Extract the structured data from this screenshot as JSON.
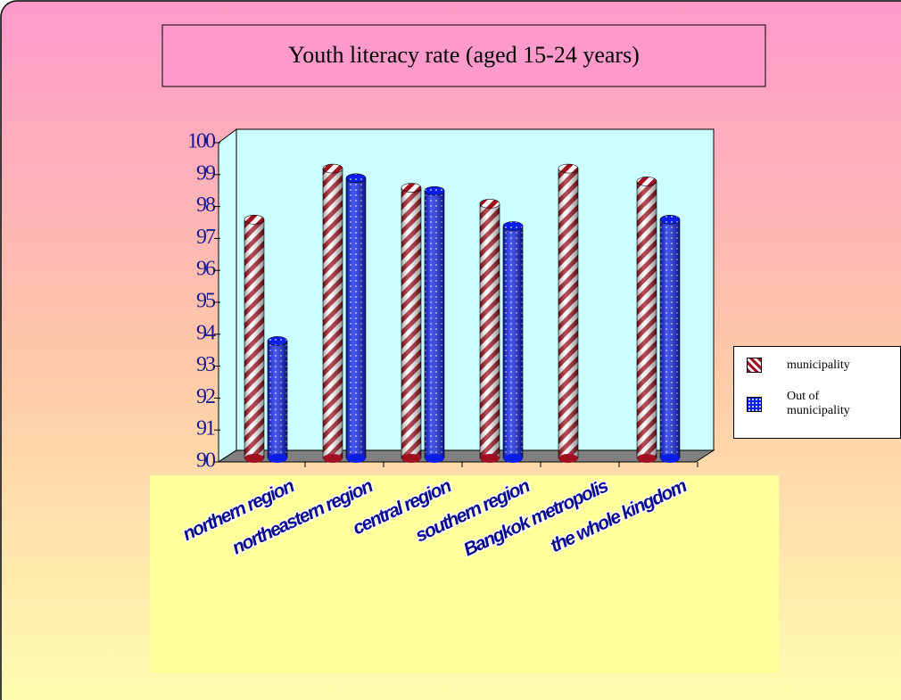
{
  "chart_data": {
    "type": "bar3d",
    "title": "Youth literacy rate (aged 15-24 years)",
    "categories": [
      "northern region",
      "northeastern region",
      "central  region",
      "southern  region",
      "Bangkok metropolis",
      "the whole kingdom"
    ],
    "series": [
      {
        "name": "municipality",
        "color": "#a01020",
        "values": [
          97.7,
          99.3,
          98.7,
          98.2,
          99.3,
          98.9
        ]
      },
      {
        "name": "Out of municipality",
        "color": "#0a1ee8",
        "values": [
          93.9,
          99.0,
          98.6,
          97.5,
          null,
          97.7
        ]
      }
    ],
    "ylim": [
      90,
      100
    ],
    "yticks": [
      90,
      91,
      92,
      93,
      94,
      95,
      96,
      97,
      98,
      99,
      100
    ],
    "legend": "right"
  }
}
